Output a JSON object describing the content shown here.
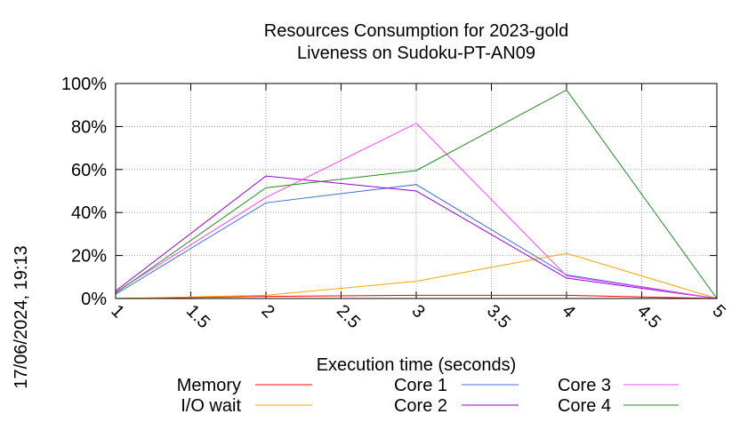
{
  "chart_data": {
    "type": "line",
    "title_line1": "Resources Consumption for 2023-gold",
    "title_line2": "Liveness on Sudoku-PT-AN09",
    "xlabel": "Execution time (seconds)",
    "ylabel": "",
    "side_label": "17/06/2024, 19:13",
    "xlim": [
      1,
      5
    ],
    "ylim": [
      0,
      100
    ],
    "x_ticks": [
      1,
      1.5,
      2,
      2.5,
      3,
      3.5,
      4,
      4.5,
      5
    ],
    "x_tick_labels": [
      "1",
      "1.5",
      "2",
      "2.5",
      "3",
      "3.5",
      "4",
      "4.5",
      "5"
    ],
    "y_ticks": [
      0,
      20,
      40,
      60,
      80,
      100
    ],
    "y_tick_labels": [
      "0%",
      "20%",
      "40%",
      "60%",
      "80%",
      "100%"
    ],
    "grid": true,
    "legend_placement": "bottom",
    "x": [
      1,
      2,
      3,
      4,
      5
    ],
    "series": [
      {
        "name": "Memory",
        "color": "#ff0000",
        "values": [
          0,
          1,
          1.5,
          1.5,
          0
        ]
      },
      {
        "name": "I/O wait",
        "color": "#ffa500",
        "values": [
          0,
          1.5,
          8,
          21,
          0
        ]
      },
      {
        "name": "Core 1",
        "color": "#3d6fe0",
        "values": [
          2,
          44.5,
          53,
          11,
          0
        ]
      },
      {
        "name": "Core 2",
        "color": "#9400d3",
        "values": [
          3.5,
          57,
          50,
          9.5,
          0
        ]
      },
      {
        "name": "Core 3",
        "color": "#ff44ff",
        "values": [
          3,
          47,
          81.5,
          10.5,
          0
        ]
      },
      {
        "name": "Core 4",
        "color": "#238b23",
        "values": [
          2.5,
          51.5,
          59.5,
          97,
          0
        ]
      }
    ]
  }
}
